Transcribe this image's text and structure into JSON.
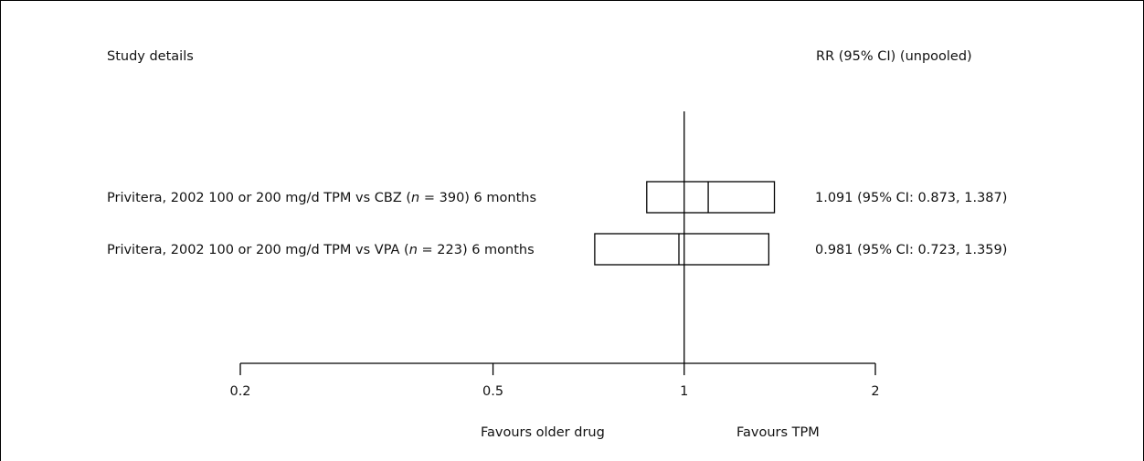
{
  "chart_data": {
    "type": "forest",
    "scale": "log",
    "xlim": [
      0.2,
      2
    ],
    "reference_line": 1,
    "header_left": "Study details",
    "header_right": "RR (95% CI) (unpooled)",
    "x_ticks": [
      {
        "value": 0.2,
        "label": "0.2"
      },
      {
        "value": 0.5,
        "label": "0.5"
      },
      {
        "value": 1,
        "label": "1"
      },
      {
        "value": 2,
        "label": "2"
      }
    ],
    "favours_left": "Favours older drug",
    "favours_right": "Favours TPM",
    "studies": [
      {
        "label_pre": "Privitera, 2002 100 or 200 mg/d TPM vs CBZ (",
        "label_n": "n",
        "label_post": " = 390) 6 months",
        "rr": 1.091,
        "ci_low": 0.873,
        "ci_high": 1.387,
        "result": "1.091 (95% CI: 0.873, 1.387)"
      },
      {
        "label_pre": "Privitera, 2002 100 or 200 mg/d TPM vs VPA (",
        "label_n": "n",
        "label_post": " = 223) 6 months",
        "rr": 0.981,
        "ci_low": 0.723,
        "ci_high": 1.359,
        "result": "0.981 (95% CI: 0.723, 1.359)"
      }
    ]
  }
}
